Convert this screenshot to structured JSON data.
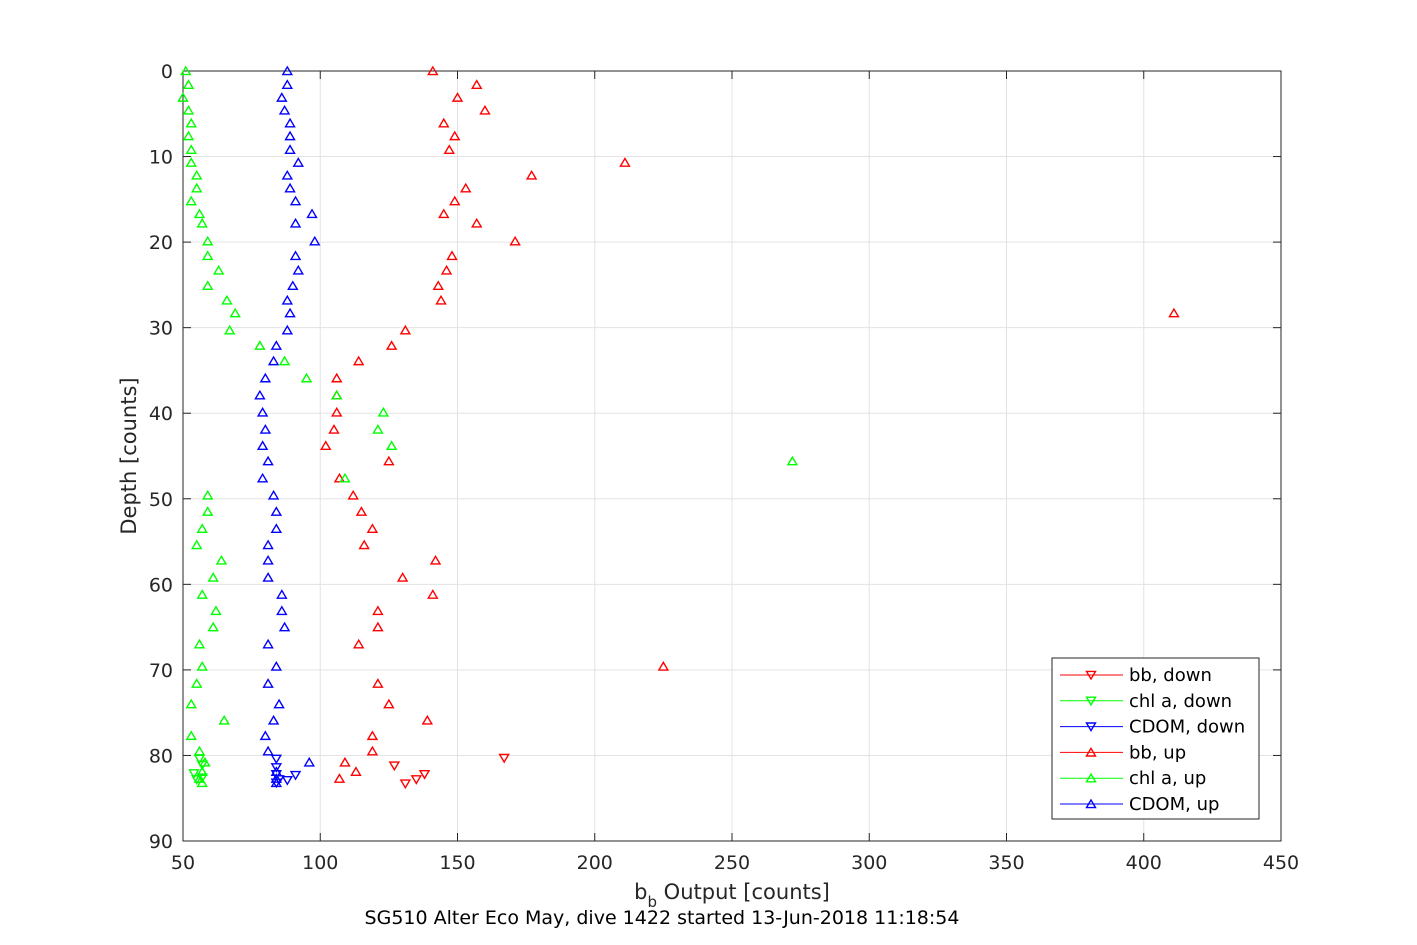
{
  "chart_data": {
    "type": "scatter",
    "title": "SG510 Alter Eco May, dive 1422 started 13-Jun-2018 11:18:54",
    "xlabel_main": "b",
    "xlabel_sub": "b",
    "xlabel_rest": " Output [counts]",
    "ylabel": "Depth [counts]",
    "xlim": [
      50,
      450
    ],
    "ylim": [
      0,
      90
    ],
    "y_reversed": true,
    "grid": true,
    "legend_position": "bottom-right",
    "x_ticks": [
      "50",
      "100",
      "150",
      "200",
      "250",
      "300",
      "350",
      "400",
      "450"
    ],
    "y_ticks": [
      "0",
      "10",
      "20",
      "30",
      "40",
      "50",
      "60",
      "70",
      "80",
      "90"
    ],
    "series": [
      {
        "name": "bb, down",
        "color": "#ff0000",
        "marker": "triangle-down",
        "points": [
          [
            167,
            80.3
          ],
          [
            138,
            82.2
          ],
          [
            135,
            82.8
          ],
          [
            131,
            83.3
          ],
          [
            127,
            81.2
          ]
        ]
      },
      {
        "name": "chl a, down",
        "color": "#00ff00",
        "marker": "triangle-down",
        "points": [
          [
            56,
            80.4
          ],
          [
            57,
            81.1
          ],
          [
            54,
            82.1
          ],
          [
            55,
            82.8
          ],
          [
            57,
            82.6
          ]
        ]
      },
      {
        "name": "CDOM, down",
        "color": "#0000ff",
        "marker": "triangle-down",
        "points": [
          [
            84,
            80.4
          ],
          [
            84,
            81.4
          ],
          [
            84,
            82.2
          ],
          [
            85,
            82.8
          ],
          [
            88,
            82.9
          ],
          [
            91,
            82.3
          ],
          [
            84,
            83.2
          ]
        ]
      },
      {
        "name": "bb, up",
        "color": "#ff0000",
        "marker": "triangle-up",
        "points": [
          [
            141,
            0
          ],
          [
            157,
            1.6
          ],
          [
            150,
            3.1
          ],
          [
            160,
            4.6
          ],
          [
            145,
            6.1
          ],
          [
            149,
            7.6
          ],
          [
            147,
            9.2
          ],
          [
            211,
            10.7
          ],
          [
            177,
            12.2
          ],
          [
            153,
            13.7
          ],
          [
            149,
            15.2
          ],
          [
            145,
            16.7
          ],
          [
            157,
            17.8
          ],
          [
            171,
            19.9
          ],
          [
            148,
            21.6
          ],
          [
            146,
            23.3
          ],
          [
            143,
            25.1
          ],
          [
            144,
            26.8
          ],
          [
            411,
            28.3
          ],
          [
            131,
            30.3
          ],
          [
            126,
            32.1
          ],
          [
            114,
            33.9
          ],
          [
            106,
            35.9
          ],
          [
            106,
            37.9
          ],
          [
            106,
            39.9
          ],
          [
            105,
            41.9
          ],
          [
            102,
            43.8
          ],
          [
            125,
            45.6
          ],
          [
            107,
            47.6
          ],
          [
            112,
            49.6
          ],
          [
            115,
            51.5
          ],
          [
            119,
            53.5
          ],
          [
            116,
            55.4
          ],
          [
            142,
            57.2
          ],
          [
            130,
            59.2
          ],
          [
            141,
            61.2
          ],
          [
            121,
            63.1
          ],
          [
            121,
            65.0
          ],
          [
            114,
            67.0
          ],
          [
            225,
            69.6
          ],
          [
            121,
            71.6
          ],
          [
            125,
            74.0
          ],
          [
            139,
            75.9
          ],
          [
            119,
            77.7
          ],
          [
            119,
            79.5
          ],
          [
            109,
            80.8
          ],
          [
            113,
            81.9
          ],
          [
            107,
            82.7
          ]
        ]
      },
      {
        "name": "chl a, up",
        "color": "#00ff00",
        "marker": "triangle-up",
        "points": [
          [
            51,
            0
          ],
          [
            52,
            1.6
          ],
          [
            50,
            3.1
          ],
          [
            52,
            4.6
          ],
          [
            53,
            6.1
          ],
          [
            52,
            7.6
          ],
          [
            53,
            9.2
          ],
          [
            53,
            10.7
          ],
          [
            55,
            12.2
          ],
          [
            55,
            13.7
          ],
          [
            53,
            15.2
          ],
          [
            56,
            16.7
          ],
          [
            57,
            17.8
          ],
          [
            59,
            19.9
          ],
          [
            59,
            21.6
          ],
          [
            63,
            23.3
          ],
          [
            59,
            25.1
          ],
          [
            66,
            26.8
          ],
          [
            69,
            28.3
          ],
          [
            67,
            30.3
          ],
          [
            78,
            32.1
          ],
          [
            87,
            33.9
          ],
          [
            95,
            35.9
          ],
          [
            106,
            37.9
          ],
          [
            123,
            39.9
          ],
          [
            121,
            41.9
          ],
          [
            126,
            43.8
          ],
          [
            272,
            45.6
          ],
          [
            109,
            47.6
          ],
          [
            59,
            49.6
          ],
          [
            59,
            51.5
          ],
          [
            57,
            53.5
          ],
          [
            55,
            55.4
          ],
          [
            64,
            57.2
          ],
          [
            61,
            59.2
          ],
          [
            57,
            61.2
          ],
          [
            62,
            63.1
          ],
          [
            61,
            65.0
          ],
          [
            56,
            67.0
          ],
          [
            57,
            69.6
          ],
          [
            55,
            71.6
          ],
          [
            53,
            74.0
          ],
          [
            65,
            75.9
          ],
          [
            53,
            77.7
          ],
          [
            56,
            79.5
          ],
          [
            58,
            80.8
          ],
          [
            57,
            81.9
          ],
          [
            56,
            82.7
          ],
          [
            57,
            83.2
          ]
        ]
      },
      {
        "name": "CDOM, up",
        "color": "#0000ff",
        "marker": "triangle-up",
        "points": [
          [
            88,
            0
          ],
          [
            88,
            1.6
          ],
          [
            86,
            3.1
          ],
          [
            87,
            4.6
          ],
          [
            89,
            6.1
          ],
          [
            89,
            7.6
          ],
          [
            89,
            9.2
          ],
          [
            92,
            10.7
          ],
          [
            88,
            12.2
          ],
          [
            89,
            13.7
          ],
          [
            91,
            15.2
          ],
          [
            97,
            16.7
          ],
          [
            91,
            17.8
          ],
          [
            98,
            19.9
          ],
          [
            91,
            21.6
          ],
          [
            92,
            23.3
          ],
          [
            90,
            25.1
          ],
          [
            88,
            26.8
          ],
          [
            89,
            28.3
          ],
          [
            88,
            30.3
          ],
          [
            84,
            32.1
          ],
          [
            83,
            33.9
          ],
          [
            80,
            35.9
          ],
          [
            78,
            37.9
          ],
          [
            79,
            39.9
          ],
          [
            80,
            41.9
          ],
          [
            79,
            43.8
          ],
          [
            81,
            45.6
          ],
          [
            79,
            47.6
          ],
          [
            83,
            49.6
          ],
          [
            84,
            51.5
          ],
          [
            84,
            53.5
          ],
          [
            81,
            55.4
          ],
          [
            81,
            57.2
          ],
          [
            81,
            59.2
          ],
          [
            86,
            61.2
          ],
          [
            86,
            63.1
          ],
          [
            87,
            65.0
          ],
          [
            81,
            67.0
          ],
          [
            84,
            69.6
          ],
          [
            81,
            71.6
          ],
          [
            85,
            74.0
          ],
          [
            83,
            75.9
          ],
          [
            80,
            77.7
          ],
          [
            81,
            79.5
          ],
          [
            96,
            80.8
          ],
          [
            84,
            81.9
          ],
          [
            84,
            82.7
          ],
          [
            84,
            83.2
          ]
        ]
      }
    ]
  }
}
